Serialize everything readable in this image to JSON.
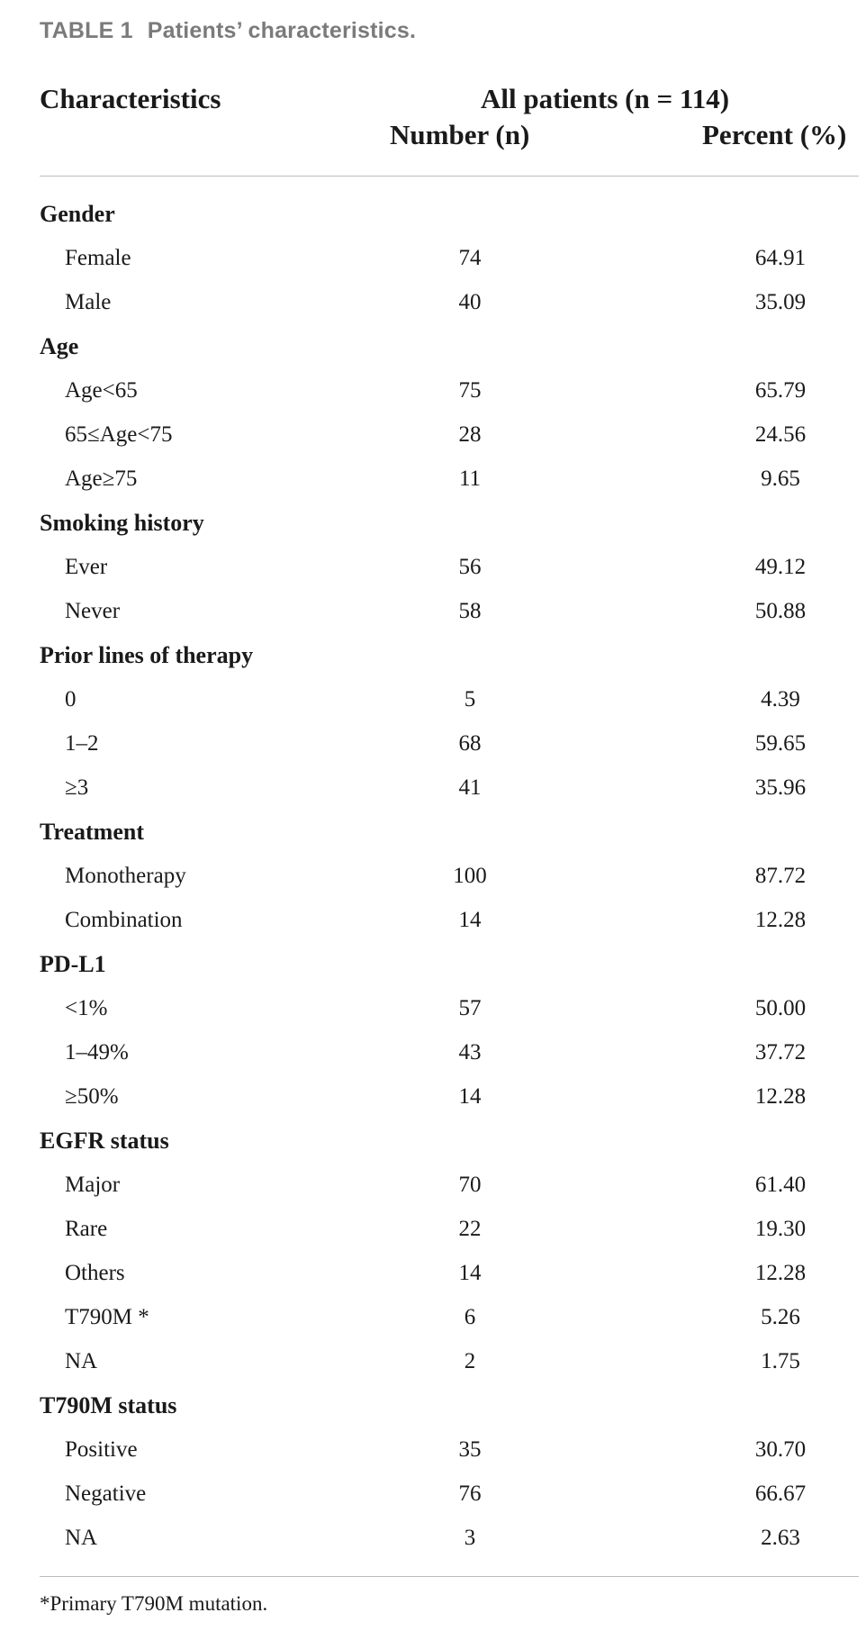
{
  "caption": {
    "label": "TABLE 1",
    "title": "Patients’ characteristics."
  },
  "header": {
    "characteristics": "Characteristics",
    "group": "All patients (n = 114)",
    "number": "Number (n)",
    "percent": "Percent (%)"
  },
  "rows": [
    {
      "label": "Gender",
      "section": true,
      "number": "",
      "percent": ""
    },
    {
      "label": "Female",
      "section": false,
      "number": "74",
      "percent": "64.91"
    },
    {
      "label": "Male",
      "section": false,
      "number": "40",
      "percent": "35.09"
    },
    {
      "label": "Age",
      "section": true,
      "number": "",
      "percent": ""
    },
    {
      "label": "Age<65",
      "section": false,
      "number": "75",
      "percent": "65.79"
    },
    {
      "label": "65≤Age<75",
      "section": false,
      "number": "28",
      "percent": "24.56"
    },
    {
      "label": "Age≥75",
      "section": false,
      "number": "11",
      "percent": "9.65"
    },
    {
      "label": "Smoking history",
      "section": true,
      "number": "",
      "percent": ""
    },
    {
      "label": "Ever",
      "section": false,
      "number": "56",
      "percent": "49.12"
    },
    {
      "label": "Never",
      "section": false,
      "number": "58",
      "percent": "50.88"
    },
    {
      "label": "Prior lines of therapy",
      "section": true,
      "number": "",
      "percent": ""
    },
    {
      "label": "0",
      "section": false,
      "number": "5",
      "percent": "4.39"
    },
    {
      "label": "1–2",
      "section": false,
      "number": "68",
      "percent": "59.65"
    },
    {
      "label": "≥3",
      "section": false,
      "number": "41",
      "percent": "35.96"
    },
    {
      "label": "Treatment",
      "section": true,
      "number": "",
      "percent": ""
    },
    {
      "label": "Monotherapy",
      "section": false,
      "number": "100",
      "percent": "87.72"
    },
    {
      "label": "Combination",
      "section": false,
      "number": "14",
      "percent": "12.28"
    },
    {
      "label": "PD-L1",
      "section": true,
      "number": "",
      "percent": ""
    },
    {
      "label": "<1%",
      "section": false,
      "number": "57",
      "percent": "50.00"
    },
    {
      "label": "1–49%",
      "section": false,
      "number": "43",
      "percent": "37.72"
    },
    {
      "label": "≥50%",
      "section": false,
      "number": "14",
      "percent": "12.28"
    },
    {
      "label": "EGFR status",
      "section": true,
      "number": "",
      "percent": ""
    },
    {
      "label": "Major",
      "section": false,
      "number": "70",
      "percent": "61.40"
    },
    {
      "label": "Rare",
      "section": false,
      "number": "22",
      "percent": "19.30"
    },
    {
      "label": "Others",
      "section": false,
      "number": "14",
      "percent": "12.28"
    },
    {
      "label": "T790M *",
      "section": false,
      "number": "6",
      "percent": "5.26"
    },
    {
      "label": "NA",
      "section": false,
      "number": "2",
      "percent": "1.75"
    },
    {
      "label": "T790M status",
      "section": true,
      "number": "",
      "percent": ""
    },
    {
      "label": "Positive",
      "section": false,
      "number": "35",
      "percent": "30.70"
    },
    {
      "label": "Negative",
      "section": false,
      "number": "76",
      "percent": "66.67"
    },
    {
      "label": "NA",
      "section": false,
      "number": "3",
      "percent": "2.63"
    }
  ],
  "footnote": "*Primary T790M mutation."
}
